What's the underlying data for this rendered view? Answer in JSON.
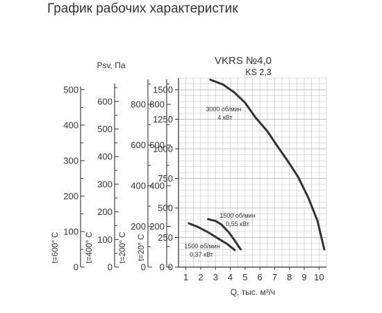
{
  "page": {
    "title": "График рабочих характеристик"
  },
  "colors": {
    "curve": "#333333",
    "grid": "#bdbdbd",
    "axis": "#333333"
  },
  "chart_data": {
    "type": "line",
    "title": "VKRS №4,0",
    "subtitle": "KS 2,3",
    "xlabel": "Q, тыс. м³/ч",
    "ylabel": "Psv, Па",
    "xlim": [
      0.5,
      10.5
    ],
    "ylim": [
      0,
      1600
    ],
    "x_ticks": [
      "1",
      "2",
      "3",
      "4",
      "5",
      "6",
      "7",
      "8",
      "9",
      "10"
    ],
    "y_ticks": [
      "0",
      "250",
      "500",
      "750",
      "1000",
      "1250",
      "1500"
    ],
    "grid": true,
    "temperature_scales": [
      {
        "label": "t=600° C",
        "ticks": [
          "0",
          "100",
          "200",
          "300",
          "400",
          "500"
        ],
        "max": 533
      },
      {
        "label": "t=400° C",
        "ticks": [
          "0",
          "100",
          "200",
          "300",
          "400",
          "500",
          "600"
        ],
        "max": 685
      },
      {
        "label": "t=200° C",
        "ticks": [
          "0",
          "200",
          "400",
          "600",
          "800"
        ],
        "max": 930
      },
      {
        "label": "t=20° C",
        "ticks": [
          "0",
          "200",
          "400",
          "600",
          "800"
        ],
        "max": 930
      }
    ],
    "series": [
      {
        "name": "3000 об/мин",
        "name2": "4 кВт",
        "x": [
          2.65,
          3.5,
          4.3,
          5.0,
          5.7,
          6.5,
          7.2,
          7.9,
          8.6,
          9.3,
          9.9,
          10.35
        ],
        "y": [
          1585,
          1545,
          1475,
          1390,
          1265,
          1150,
          1020,
          895,
          760,
          580,
          390,
          150
        ]
      },
      {
        "name": "1500 об/мин",
        "name2": "0,55 кВт",
        "x": [
          2.5,
          3.0,
          3.4,
          3.9,
          4.3,
          4.7
        ],
        "y": [
          405,
          390,
          360,
          295,
          225,
          150
        ]
      },
      {
        "name": "1500 об/мин",
        "name2": "0,37 кВт",
        "x": [
          1.2,
          1.8,
          2.5,
          3.2,
          3.8,
          4.3
        ],
        "y": [
          370,
          340,
          295,
          240,
          195,
          145
        ]
      }
    ]
  }
}
